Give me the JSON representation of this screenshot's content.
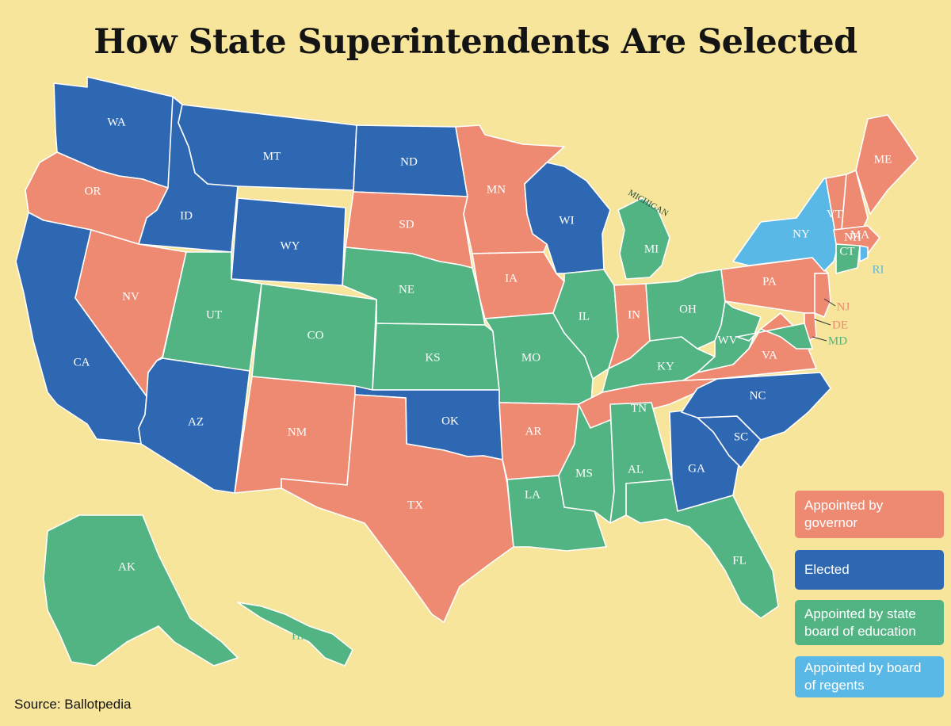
{
  "title": "How State Superintendents Are Selected",
  "source": "Source: Ballotpedia",
  "colors": {
    "governor": "#ee8a72",
    "elected": "#2f68b2",
    "board": "#52b482",
    "regents": "#59b8e6",
    "background": "#f6e59a"
  },
  "legend": [
    {
      "key": "governor",
      "label": "Appointed by governor"
    },
    {
      "key": "elected",
      "label": "Elected"
    },
    {
      "key": "board",
      "label": "Appointed by state board of education"
    },
    {
      "key": "regents",
      "label": "Appointed by board of regents"
    }
  ],
  "annotations": {
    "lake_label": "MICHIGAN"
  },
  "states": [
    {
      "abbr": "WA",
      "method": "elected"
    },
    {
      "abbr": "OR",
      "method": "governor"
    },
    {
      "abbr": "CA",
      "method": "elected"
    },
    {
      "abbr": "ID",
      "method": "elected"
    },
    {
      "abbr": "NV",
      "method": "governor"
    },
    {
      "abbr": "MT",
      "method": "elected"
    },
    {
      "abbr": "WY",
      "method": "elected"
    },
    {
      "abbr": "UT",
      "method": "board"
    },
    {
      "abbr": "AZ",
      "method": "elected"
    },
    {
      "abbr": "CO",
      "method": "board"
    },
    {
      "abbr": "NM",
      "method": "governor"
    },
    {
      "abbr": "ND",
      "method": "elected"
    },
    {
      "abbr": "SD",
      "method": "governor"
    },
    {
      "abbr": "NE",
      "method": "board"
    },
    {
      "abbr": "KS",
      "method": "board"
    },
    {
      "abbr": "OK",
      "method": "elected"
    },
    {
      "abbr": "TX",
      "method": "governor"
    },
    {
      "abbr": "MN",
      "method": "governor"
    },
    {
      "abbr": "IA",
      "method": "governor"
    },
    {
      "abbr": "MO",
      "method": "board"
    },
    {
      "abbr": "AR",
      "method": "governor"
    },
    {
      "abbr": "LA",
      "method": "board"
    },
    {
      "abbr": "WI",
      "method": "elected"
    },
    {
      "abbr": "IL",
      "method": "board"
    },
    {
      "abbr": "MS",
      "method": "board"
    },
    {
      "abbr": "MI",
      "method": "board"
    },
    {
      "abbr": "IN",
      "method": "governor"
    },
    {
      "abbr": "KY",
      "method": "board"
    },
    {
      "abbr": "TN",
      "method": "governor"
    },
    {
      "abbr": "AL",
      "method": "board"
    },
    {
      "abbr": "OH",
      "method": "board"
    },
    {
      "abbr": "WV",
      "method": "board"
    },
    {
      "abbr": "GA",
      "method": "elected"
    },
    {
      "abbr": "FL",
      "method": "board"
    },
    {
      "abbr": "SC",
      "method": "elected"
    },
    {
      "abbr": "NC",
      "method": "elected"
    },
    {
      "abbr": "VA",
      "method": "governor"
    },
    {
      "abbr": "PA",
      "method": "governor"
    },
    {
      "abbr": "NY",
      "method": "regents"
    },
    {
      "abbr": "VT",
      "method": "governor"
    },
    {
      "abbr": "NH",
      "method": "governor"
    },
    {
      "abbr": "ME",
      "method": "governor"
    },
    {
      "abbr": "MA",
      "method": "governor"
    },
    {
      "abbr": "CT",
      "method": "board"
    },
    {
      "abbr": "RI",
      "method": "regents"
    },
    {
      "abbr": "NJ",
      "method": "governor"
    },
    {
      "abbr": "DE",
      "method": "governor"
    },
    {
      "abbr": "MD",
      "method": "board"
    },
    {
      "abbr": "AK",
      "method": "board"
    },
    {
      "abbr": "HI",
      "method": "board"
    }
  ]
}
